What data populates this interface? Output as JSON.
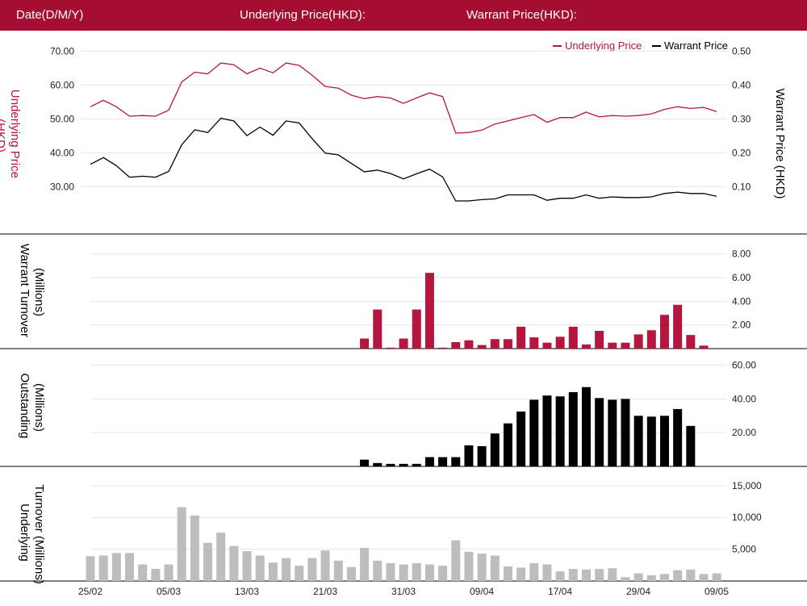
{
  "header": {
    "date_label": "Date(D/M/Y)",
    "underlying_label": "Underlying Price(HKD):",
    "warrant_label": "Warrant Price(HKD):"
  },
  "colors": {
    "header_bg": "#a50d32",
    "underlying": "#b5163e",
    "warrant": "#000000",
    "underlying_turnover": "#bdbdbd",
    "grid": "#e6e6e6"
  },
  "chart_data": [
    {
      "type": "line",
      "legend": [
        "Underlying Price",
        "Warrant Price"
      ],
      "legend_position": "top-right",
      "ylabel_left": "Underlying Price (HKD)",
      "ylabel_right": "Warrant  Price (HKD)",
      "yticks_left": [
        "30.00",
        "40.00",
        "50.00",
        "60.00",
        "70.00"
      ],
      "yticks_right": [
        "0.10",
        "0.20",
        "0.30",
        "0.40",
        "0.50"
      ],
      "ylim_left": [
        22,
        72
      ],
      "ylim_right": [
        0.02,
        0.52
      ],
      "grid": true,
      "series": [
        {
          "name": "Underlying Price",
          "axis": "left",
          "values": [
            53.6,
            55.5,
            53.6,
            50.8,
            51.0,
            50.8,
            52.6,
            60.9,
            63.8,
            63.3,
            66.5,
            66.0,
            63.3,
            65.0,
            63.6,
            66.5,
            65.8,
            62.9,
            59.6,
            59.1,
            57.0,
            56.0,
            56.6,
            56.2,
            54.6,
            56.2,
            57.7,
            56.6,
            45.8,
            46.0,
            46.7,
            48.5,
            49.4,
            50.4,
            51.3,
            49.0,
            50.4,
            50.4,
            52.0,
            50.6,
            51.0,
            50.8,
            51.0,
            51.5,
            52.8,
            53.6,
            53.1,
            53.4,
            52.2
          ]
        },
        {
          "name": "Warrant Price",
          "axis": "right",
          "values": [
            0.166,
            0.186,
            0.162,
            0.128,
            0.131,
            0.128,
            0.145,
            0.224,
            0.268,
            0.26,
            0.302,
            0.294,
            0.251,
            0.276,
            0.252,
            0.294,
            0.288,
            0.242,
            0.199,
            0.194,
            0.169,
            0.144,
            0.149,
            0.139,
            0.123,
            0.138,
            0.152,
            0.129,
            0.058,
            0.058,
            0.062,
            0.064,
            0.076,
            0.076,
            0.076,
            0.06,
            0.066,
            0.066,
            0.076,
            0.066,
            0.07,
            0.068,
            0.068,
            0.07,
            0.08,
            0.084,
            0.08,
            0.08,
            0.072
          ]
        }
      ]
    },
    {
      "type": "bar",
      "ylabel": "Warrant  Turnover (Millions)",
      "yticks": [
        "2.00",
        "4.00",
        "6.00",
        "8.00"
      ],
      "ylim": [
        0,
        9
      ],
      "grid": true,
      "series": [
        {
          "values": [
            0,
            0,
            0,
            0,
            0,
            0,
            0,
            0,
            0,
            0,
            0,
            0,
            0,
            0,
            0,
            0,
            0,
            0,
            0,
            0,
            0,
            0.85,
            3.3,
            0.08,
            0.85,
            3.3,
            6.4,
            0.08,
            0.55,
            0.7,
            0.3,
            0.8,
            0.8,
            1.85,
            0.95,
            0.5,
            1.0,
            1.85,
            0.35,
            1.5,
            0.5,
            0.5,
            1.2,
            1.55,
            2.85,
            3.7,
            1.15,
            0.25
          ]
        }
      ]
    },
    {
      "type": "bar",
      "ylabel": "Outstanding (Millions)",
      "yticks": [
        "20.00",
        "40.00",
        "60.00"
      ],
      "ylim": [
        0,
        66
      ],
      "grid": true,
      "series": [
        {
          "values": [
            0,
            0,
            0,
            0,
            0,
            0,
            0,
            0,
            0,
            0,
            0,
            0,
            0,
            0,
            0,
            0,
            0,
            0,
            0,
            0,
            0,
            4,
            2,
            1.5,
            1.5,
            1.5,
            5.5,
            5.5,
            5.5,
            12.5,
            12,
            19.5,
            25.5,
            32.5,
            39.5,
            42,
            41.5,
            44,
            47,
            40.5,
            39.5,
            40,
            30,
            29.5,
            30,
            34,
            24
          ]
        }
      ]
    },
    {
      "type": "bar",
      "ylabel": "Underlying Turnover (Millions)",
      "yticks": [
        "5,000",
        "10,000",
        "15,000"
      ],
      "ylim": [
        0,
        16500
      ],
      "grid": true,
      "xlabels": [
        "25/02",
        "05/03",
        "13/03",
        "21/03",
        "31/03",
        "09/04",
        "17/04",
        "29/04",
        "09/05"
      ],
      "series": [
        {
          "values": [
            3900,
            4000,
            4400,
            4400,
            2600,
            1900,
            2600,
            11600,
            10300,
            6000,
            7600,
            5500,
            4700,
            4000,
            2900,
            3600,
            2400,
            3600,
            4800,
            3200,
            2200,
            5200,
            3200,
            2800,
            2600,
            2800,
            2600,
            2400,
            6400,
            4600,
            4300,
            4000,
            2300,
            2100,
            2800,
            2600,
            1500,
            1900,
            1800,
            1900,
            2000,
            600,
            1200,
            900,
            1100,
            1700,
            1800,
            1100,
            1200
          ]
        }
      ]
    }
  ]
}
